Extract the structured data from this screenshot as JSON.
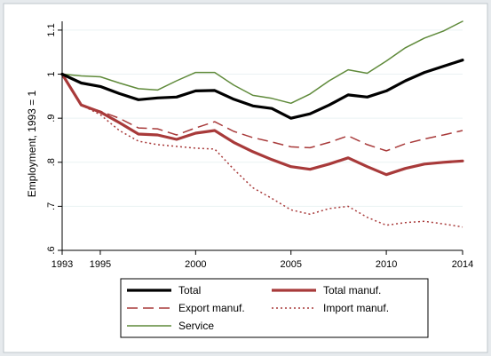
{
  "chart_data": {
    "type": "line",
    "title": "",
    "xlabel": "",
    "ylabel": "Employment, 1993 = 1",
    "xlim": [
      1993,
      2014
    ],
    "ylim": [
      0.6,
      1.12
    ],
    "x_ticks": [
      "1993",
      "1995",
      "2000",
      "2005",
      "2010",
      "2014"
    ],
    "y_ticks": [
      ".6",
      ".7",
      ".8",
      ".9",
      "1",
      "1.1"
    ],
    "grid": "horizontal",
    "legend_position": "bottom",
    "x": [
      1993,
      1994,
      1995,
      1996,
      1997,
      1998,
      1999,
      2000,
      2001,
      2002,
      2003,
      2004,
      2005,
      2006,
      2007,
      2008,
      2009,
      2010,
      2011,
      2012,
      2013,
      2014
    ],
    "series": [
      {
        "name": "Total",
        "color": "#000000",
        "dash": "solid",
        "width": 3.2,
        "values": [
          1.0,
          0.98,
          0.972,
          0.956,
          0.942,
          0.946,
          0.948,
          0.962,
          0.963,
          0.943,
          0.928,
          0.922,
          0.9,
          0.91,
          0.93,
          0.953,
          0.948,
          0.962,
          0.985,
          1.004,
          1.018,
          1.032
        ]
      },
      {
        "name": "Total manuf.",
        "color": "#a83a3a",
        "dash": "solid",
        "width": 3.2,
        "values": [
          1.0,
          0.93,
          0.914,
          0.89,
          0.864,
          0.862,
          0.852,
          0.866,
          0.872,
          0.845,
          0.824,
          0.806,
          0.79,
          0.784,
          0.796,
          0.81,
          0.79,
          0.772,
          0.786,
          0.796,
          0.8,
          0.803
        ]
      },
      {
        "name": "Export manuf.",
        "color": "#a83a3a",
        "dash": "long",
        "width": 1.5,
        "values": [
          1.0,
          0.93,
          0.916,
          0.9,
          0.878,
          0.876,
          0.862,
          0.878,
          0.892,
          0.87,
          0.856,
          0.846,
          0.835,
          0.833,
          0.845,
          0.86,
          0.84,
          0.826,
          0.842,
          0.853,
          0.862,
          0.872
        ]
      },
      {
        "name": "Import manuf.",
        "color": "#a83a3a",
        "dash": "dot",
        "width": 1.5,
        "values": [
          1.0,
          0.93,
          0.908,
          0.872,
          0.848,
          0.84,
          0.836,
          0.832,
          0.83,
          0.784,
          0.742,
          0.718,
          0.692,
          0.682,
          0.695,
          0.7,
          0.675,
          0.657,
          0.663,
          0.666,
          0.66,
          0.653
        ]
      },
      {
        "name": "Service",
        "color": "#5f8a3a",
        "dash": "solid",
        "width": 1.5,
        "values": [
          1.0,
          0.996,
          0.994,
          0.98,
          0.967,
          0.964,
          0.985,
          1.004,
          1.004,
          0.975,
          0.952,
          0.945,
          0.934,
          0.955,
          0.985,
          1.01,
          1.002,
          1.03,
          1.06,
          1.082,
          1.098,
          1.12
        ]
      }
    ]
  }
}
